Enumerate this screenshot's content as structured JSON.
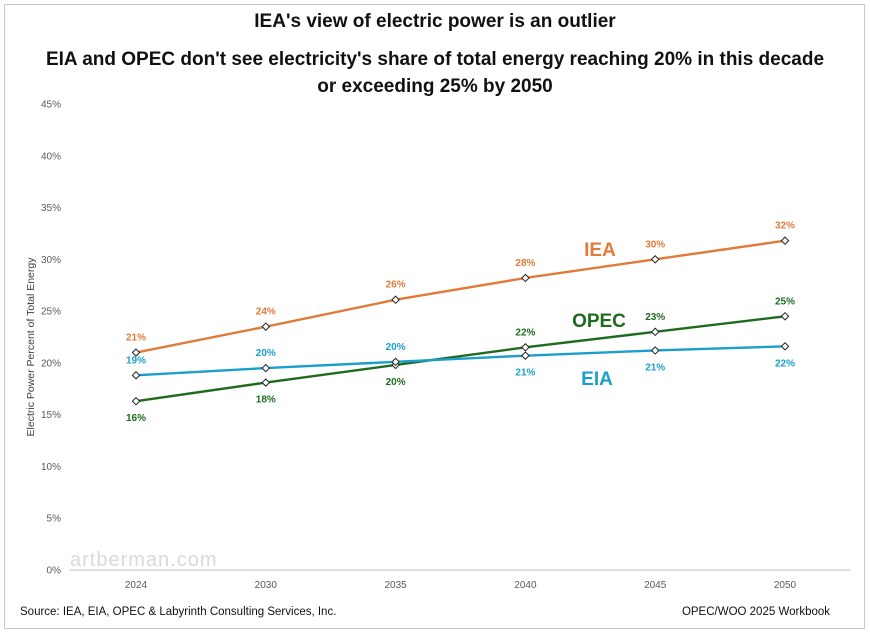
{
  "chart_data": {
    "type": "line",
    "title": "IEA's view of electric power is an outlier",
    "subtitle_line1": "EIA and OPEC don't see electricity's share of total energy reaching 20% in this decade",
    "subtitle_line2": "or exceeding 25% by 2050",
    "xlabel": "",
    "ylabel": "Electric Power Percent of Total Energy",
    "categories": [
      "2024",
      "2030",
      "2035",
      "2040",
      "2045",
      "2050"
    ],
    "y_ticks": [
      0,
      5,
      10,
      15,
      20,
      25,
      30,
      35,
      40,
      45
    ],
    "y_tick_labels": [
      "0%",
      "5%",
      "10%",
      "15%",
      "20%",
      "25%",
      "30%",
      "35%",
      "40%",
      "45%"
    ],
    "ylim": [
      0,
      45
    ],
    "grid": false,
    "series": [
      {
        "name": "IEA",
        "color": "#e07b39",
        "values": [
          21.0,
          23.5,
          26.1,
          28.2,
          30.0,
          31.8
        ],
        "labels": [
          "21%",
          "24%",
          "26%",
          "28%",
          "30%",
          "32%"
        ],
        "label_position": "above"
      },
      {
        "name": "OPEC",
        "color": "#1e6b1e",
        "values": [
          16.3,
          18.1,
          19.8,
          21.5,
          23.0,
          24.5
        ],
        "labels": [
          "16%",
          "18%",
          "20%",
          "22%",
          "23%",
          "25%"
        ],
        "label_position": [
          "below",
          "below",
          "below",
          "above",
          "above",
          "above"
        ]
      },
      {
        "name": "EIA",
        "color": "#1a9fcc",
        "values": [
          18.8,
          19.5,
          20.1,
          20.7,
          21.2,
          21.6
        ],
        "labels": [
          "19%",
          "20%",
          "20%",
          "21%",
          "21%",
          "22%"
        ],
        "label_position": [
          "above",
          "above",
          "above",
          "below",
          "below",
          "below"
        ]
      }
    ]
  },
  "watermark": "artberman.com",
  "footer": {
    "source": "Source:  IEA, EIA, OPEC & Labyrinth Consulting Services, Inc.",
    "workbook": "OPEC/WOO 2025 Workbook"
  }
}
